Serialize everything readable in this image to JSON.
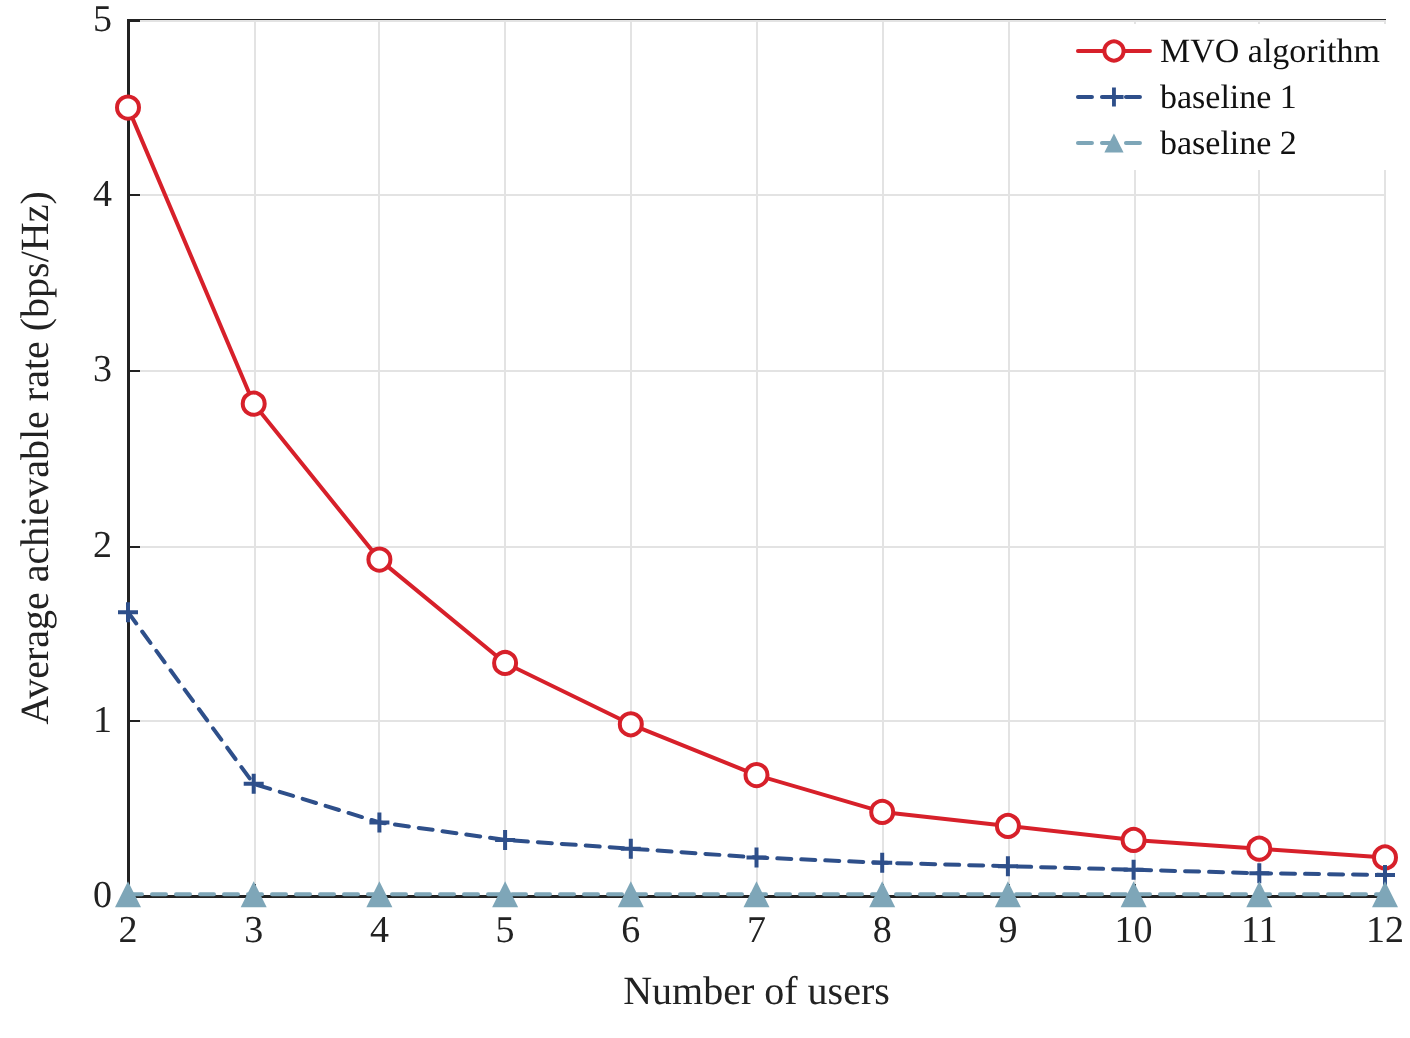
{
  "chart_data": {
    "type": "line",
    "xlabel": "Number of users",
    "ylabel": "Average achievable rate (bps/Hz)",
    "x": [
      2,
      3,
      4,
      5,
      6,
      7,
      8,
      9,
      10,
      11,
      12
    ],
    "series": [
      {
        "name": "MVO algorithm",
        "color": "#d7202a",
        "marker": "circle",
        "line_style": "solid",
        "values": [
          4.5,
          2.81,
          1.92,
          1.33,
          0.98,
          0.69,
          0.48,
          0.4,
          0.32,
          0.27,
          0.22
        ]
      },
      {
        "name": "baseline 1",
        "color": "#2e4f8a",
        "marker": "cross",
        "line_style": "dashed",
        "values": [
          1.62,
          0.64,
          0.42,
          0.32,
          0.27,
          0.22,
          0.19,
          0.17,
          0.15,
          0.13,
          0.12
        ]
      },
      {
        "name": "baseline 2",
        "color": "#7ea6b8",
        "marker": "triangle",
        "line_style": "dashed",
        "values": [
          0.01,
          0.01,
          0.01,
          0.01,
          0.01,
          0.01,
          0.01,
          0.01,
          0.01,
          0.01,
          0.01
        ]
      }
    ],
    "xlim": [
      2,
      12
    ],
    "xticks": [
      2,
      3,
      4,
      5,
      6,
      7,
      8,
      9,
      10,
      11,
      12
    ],
    "ylim": [
      0,
      5
    ],
    "yticks": [
      0,
      1,
      2,
      3,
      4,
      5
    ],
    "grid": true,
    "legend": "top right"
  }
}
